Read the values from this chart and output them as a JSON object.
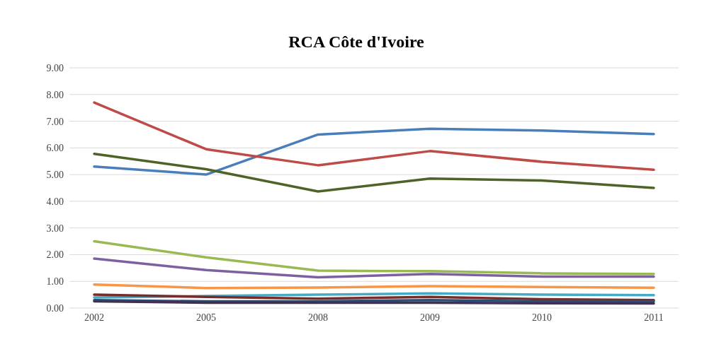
{
  "chart_data": {
    "type": "line",
    "title": "RCA Côte d'Ivoire",
    "categories": [
      "2002",
      "2005",
      "2008",
      "2009",
      "2010",
      "2011"
    ],
    "series": [
      {
        "color": "#4a7ebb",
        "values": [
          5.3,
          5.0,
          6.5,
          6.72,
          6.65,
          6.52
        ]
      },
      {
        "color": "#be4b48",
        "values": [
          7.7,
          5.95,
          5.35,
          5.88,
          5.48,
          5.18
        ]
      },
      {
        "color": "#4f6228",
        "values": [
          5.78,
          5.2,
          4.37,
          4.85,
          4.78,
          4.5
        ]
      },
      {
        "color": "#98b954",
        "values": [
          2.5,
          1.9,
          1.4,
          1.38,
          1.3,
          1.28
        ]
      },
      {
        "color": "#7d60a0",
        "values": [
          1.85,
          1.42,
          1.15,
          1.28,
          1.18,
          1.18
        ]
      },
      {
        "color": "#f79646",
        "values": [
          0.88,
          0.75,
          0.77,
          0.82,
          0.79,
          0.76
        ]
      },
      {
        "color": "#46aac5",
        "values": [
          0.4,
          0.45,
          0.5,
          0.55,
          0.5,
          0.48
        ]
      },
      {
        "color": "#772c2a",
        "values": [
          0.5,
          0.42,
          0.35,
          0.42,
          0.33,
          0.3
        ]
      },
      {
        "color": "#2c4d75",
        "values": [
          0.3,
          0.25,
          0.25,
          0.3,
          0.25,
          0.25
        ]
      },
      {
        "color": "#403152",
        "values": [
          0.25,
          0.2,
          0.2,
          0.2,
          0.18,
          0.17
        ]
      }
    ],
    "ylim": [
      0,
      9
    ],
    "yticks": [
      {
        "value": 0,
        "label": "0.00"
      },
      {
        "value": 1,
        "label": "1.00"
      },
      {
        "value": 2,
        "label": "2.00"
      },
      {
        "value": 3,
        "label": "3.00"
      },
      {
        "value": 4,
        "label": "4.00"
      },
      {
        "value": 5,
        "label": "5.00"
      },
      {
        "value": 6,
        "label": "6.00"
      },
      {
        "value": 7,
        "label": "7.00"
      },
      {
        "value": 8,
        "label": "8.00"
      },
      {
        "value": 9,
        "label": "9.00"
      }
    ],
    "grid": "y",
    "marker": "none",
    "line_style": "solid",
    "legend": false
  }
}
